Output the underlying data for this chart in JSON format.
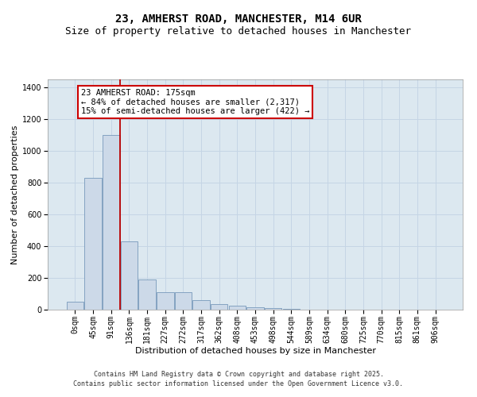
{
  "title_line1": "23, AMHERST ROAD, MANCHESTER, M14 6UR",
  "title_line2": "Size of property relative to detached houses in Manchester",
  "xlabel": "Distribution of detached houses by size in Manchester",
  "ylabel": "Number of detached properties",
  "categories": [
    "0sqm",
    "45sqm",
    "91sqm",
    "136sqm",
    "181sqm",
    "227sqm",
    "272sqm",
    "317sqm",
    "362sqm",
    "408sqm",
    "453sqm",
    "498sqm",
    "544sqm",
    "589sqm",
    "634sqm",
    "680sqm",
    "725sqm",
    "770sqm",
    "815sqm",
    "861sqm",
    "906sqm"
  ],
  "values": [
    50,
    830,
    1100,
    430,
    190,
    110,
    110,
    60,
    35,
    25,
    15,
    10,
    5,
    2,
    1,
    0,
    0,
    0,
    0,
    0,
    0
  ],
  "bar_color": "#ccd9e8",
  "bar_edge_color": "#7799bb",
  "vline_color": "#bb0000",
  "vline_x_idx": 3,
  "annotation_text": "23 AMHERST ROAD: 175sqm\n← 84% of detached houses are smaller (2,317)\n15% of semi-detached houses are larger (422) →",
  "annotation_box_facecolor": "#ffffff",
  "annotation_box_edgecolor": "#cc0000",
  "ylim": [
    0,
    1450
  ],
  "yticks": [
    0,
    200,
    400,
    600,
    800,
    1000,
    1200,
    1400
  ],
  "grid_color": "#c5d5e5",
  "plot_bg_color": "#dce8f0",
  "footer_text": "Contains HM Land Registry data © Crown copyright and database right 2025.\nContains public sector information licensed under the Open Government Licence v3.0.",
  "title_fontsize": 10,
  "subtitle_fontsize": 9,
  "axis_label_fontsize": 8,
  "tick_fontsize": 7,
  "annotation_fontsize": 7.5,
  "footer_fontsize": 6
}
